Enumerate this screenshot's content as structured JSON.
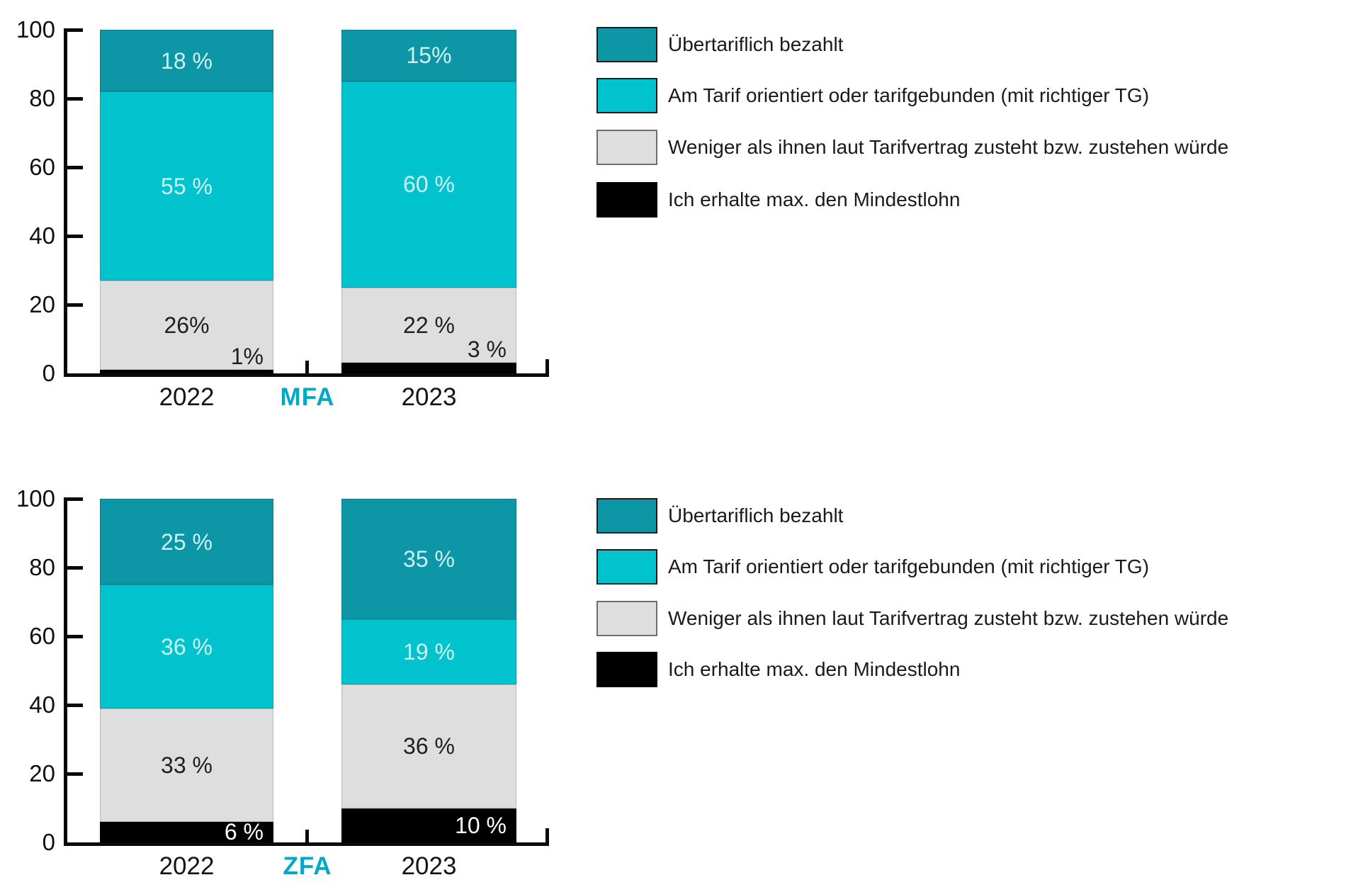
{
  "colors": {
    "dark_teal": "#0d96a5",
    "cyan": "#00c3cd",
    "gray": "#dedede",
    "black": "#000000",
    "group_label": "#00aac6",
    "light_segment_text": "#cdf1f4",
    "dark_segment_text": "#1f1f1f",
    "axis": "#0a0a0a"
  },
  "legend": {
    "items": [
      {
        "label": "Übertariflich bezahlt",
        "color": "#0d96a5",
        "swatch_border": "#1c1c1c"
      },
      {
        "label": "Am Tarif orientiert oder tarifgebunden (mit richtiger TG)",
        "color": "#00c3cd",
        "swatch_border": "#1c1c1c"
      },
      {
        "label": "Weniger als ihnen laut Tarifvertrag zusteht bzw. zustehen würde",
        "color": "#dedede",
        "swatch_border": "#6e6e6e"
      },
      {
        "label": "Ich erhalte max. den Mindestlohn",
        "color": "#000000",
        "swatch_border": "#000000"
      }
    ]
  },
  "chart_data": [
    {
      "type": "bar",
      "stacked": true,
      "group_label": "MFA",
      "categories": [
        "2022",
        "2023"
      ],
      "series": [
        {
          "name": "Übertariflich bezahlt",
          "color": "#0d96a5",
          "values": [
            18,
            15
          ],
          "labels": [
            "18 %",
            "15%"
          ]
        },
        {
          "name": "Am Tarif orientiert oder tarifgebunden (mit richtiger TG)",
          "color": "#00c3cd",
          "values": [
            55,
            60
          ],
          "labels": [
            "55 %",
            "60 %"
          ]
        },
        {
          "name": "Weniger als ihnen laut Tarifvertrag zusteht bzw. zustehen würde",
          "color": "#dedede",
          "values": [
            26,
            22
          ],
          "labels": [
            "26%",
            "22 %"
          ]
        },
        {
          "name": "Ich erhalte max. den Mindestlohn",
          "color": "#000000",
          "values": [
            1,
            3
          ],
          "labels": [
            "1%",
            "3 %"
          ]
        }
      ],
      "ylim": [
        0,
        100
      ],
      "y_ticks": [
        0,
        20,
        40,
        60,
        80,
        100
      ],
      "grid": false,
      "legend_position": "right"
    },
    {
      "type": "bar",
      "stacked": true,
      "group_label": "ZFA",
      "categories": [
        "2022",
        "2023"
      ],
      "series": [
        {
          "name": "Übertariflich bezahlt",
          "color": "#0d96a5",
          "values": [
            25,
            35
          ],
          "labels": [
            "25 %",
            "35 %"
          ]
        },
        {
          "name": "Am Tarif orientiert oder tarifgebunden (mit richtiger TG)",
          "color": "#00c3cd",
          "values": [
            36,
            19
          ],
          "labels": [
            "36 %",
            "19 %"
          ]
        },
        {
          "name": "Weniger als ihnen laut Tarifvertrag zusteht bzw. zustehen würde",
          "color": "#dedede",
          "values": [
            33,
            36
          ],
          "labels": [
            "33 %",
            "36 %"
          ]
        },
        {
          "name": "Ich erhalte max. den Mindestlohn",
          "color": "#000000",
          "values": [
            6,
            10
          ],
          "labels": [
            "6 %",
            "10 %"
          ]
        }
      ],
      "ylim": [
        0,
        100
      ],
      "y_ticks": [
        0,
        20,
        40,
        60,
        80,
        100
      ],
      "grid": false,
      "legend_position": "right"
    }
  ]
}
